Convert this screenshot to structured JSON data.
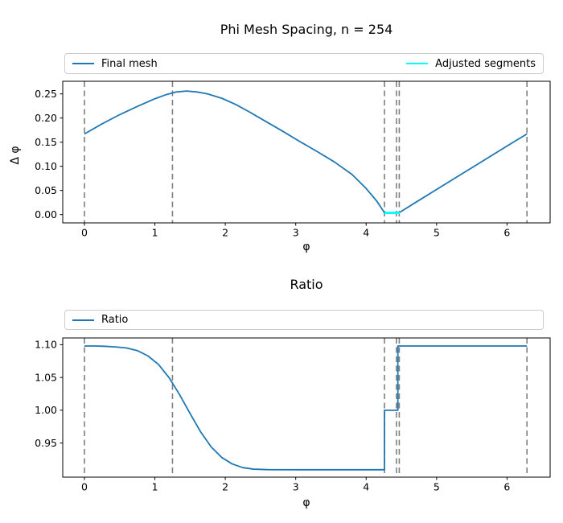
{
  "figure": {
    "background": "#ffffff",
    "accent_blue": "#1f77b4",
    "accent_cyan": "#00ffff",
    "dashed_gray": "#7f7f7f"
  },
  "chart_data": [
    {
      "type": "line",
      "title": "Phi Mesh Spacing, n = 254",
      "xlabel": "φ",
      "ylabel": "Δ φ",
      "xlim": [
        -0.308,
        6.612
      ],
      "ylim": [
        -0.0172,
        0.2762
      ],
      "xticks": [
        0,
        1,
        2,
        3,
        4,
        5,
        6
      ],
      "xtick_labels": [
        "0",
        "1",
        "2",
        "3",
        "4",
        "5",
        "6"
      ],
      "yticks": [
        0.0,
        0.05,
        0.1,
        0.15,
        0.2,
        0.25
      ],
      "ytick_labels": [
        "0.00",
        "0.05",
        "0.10",
        "0.15",
        "0.20",
        "0.25"
      ],
      "grid": false,
      "legend_position": "above-axes-expanded",
      "dashed_vlines_x": [
        0,
        1.25,
        4.26,
        4.43,
        4.47,
        6.283
      ],
      "dashed_line_color": "#7f7f7f",
      "series": [
        {
          "name": "Final mesh",
          "color": "#1f77b4",
          "width": 1.8,
          "points": [
            [
              0,
              0.167
            ],
            [
              0.25,
              0.188
            ],
            [
              0.5,
              0.207
            ],
            [
              0.75,
              0.224
            ],
            [
              1.0,
              0.24
            ],
            [
              1.15,
              0.248
            ],
            [
              1.3,
              0.254
            ],
            [
              1.45,
              0.256
            ],
            [
              1.6,
              0.254
            ],
            [
              1.75,
              0.25
            ],
            [
              1.95,
              0.241
            ],
            [
              2.15,
              0.228
            ],
            [
              2.35,
              0.212
            ],
            [
              2.55,
              0.195
            ],
            [
              2.8,
              0.174
            ],
            [
              3.05,
              0.152
            ],
            [
              3.3,
              0.131
            ],
            [
              3.55,
              0.109
            ],
            [
              3.8,
              0.083
            ],
            [
              4.0,
              0.054
            ],
            [
              4.15,
              0.028
            ],
            [
              4.26,
              0.004
            ],
            [
              4.47,
              0.004
            ],
            [
              4.7,
              0.025
            ],
            [
              5.0,
              0.052
            ],
            [
              5.3,
              0.079
            ],
            [
              5.6,
              0.106
            ],
            [
              5.9,
              0.133
            ],
            [
              6.1,
              0.151
            ],
            [
              6.283,
              0.167
            ]
          ]
        },
        {
          "name": "Adjusted segments",
          "color": "#00ffff",
          "width": 2.8,
          "points": [
            [
              4.26,
              0.0035
            ],
            [
              4.48,
              0.0035
            ]
          ]
        }
      ]
    },
    {
      "type": "line",
      "title": "Ratio",
      "xlabel": "φ",
      "ylabel": "",
      "xlim": [
        -0.308,
        6.612
      ],
      "ylim": [
        0.898,
        1.1103
      ],
      "xticks": [
        0,
        1,
        2,
        3,
        4,
        5,
        6
      ],
      "xtick_labels": [
        "0",
        "1",
        "2",
        "3",
        "4",
        "5",
        "6"
      ],
      "yticks": [
        0.95,
        1.0,
        1.05,
        1.1
      ],
      "ytick_labels": [
        "0.95",
        "1.00",
        "1.05",
        "1.10"
      ],
      "grid": false,
      "legend_position": "above-axes-expanded",
      "dashed_vlines_x": [
        0,
        1.25,
        4.26,
        4.43,
        4.47,
        6.283
      ],
      "dashed_line_color": "#7f7f7f",
      "series": [
        {
          "name": "Ratio",
          "color": "#1f77b4",
          "width": 1.8,
          "points": [
            [
              0,
              1.098
            ],
            [
              0.15,
              1.098
            ],
            [
              0.3,
              1.0975
            ],
            [
              0.45,
              1.0965
            ],
            [
              0.6,
              1.095
            ],
            [
              0.75,
              1.091
            ],
            [
              0.9,
              1.083
            ],
            [
              1.05,
              1.07
            ],
            [
              1.2,
              1.05
            ],
            [
              1.35,
              1.024
            ],
            [
              1.5,
              0.995
            ],
            [
              1.65,
              0.967
            ],
            [
              1.8,
              0.944
            ],
            [
              1.95,
              0.928
            ],
            [
              2.1,
              0.918
            ],
            [
              2.25,
              0.9125
            ],
            [
              2.4,
              0.9102
            ],
            [
              2.6,
              0.9094
            ],
            [
              3.0,
              0.9093
            ],
            [
              3.5,
              0.9093
            ],
            [
              4.0,
              0.9093
            ],
            [
              4.26,
              0.9093
            ],
            [
              4.26,
              1.0
            ],
            [
              4.45,
              1.0
            ],
            [
              4.45,
              1.098
            ],
            [
              4.7,
              1.098
            ],
            [
              5.5,
              1.098
            ],
            [
              6.283,
              1.098
            ]
          ]
        }
      ]
    }
  ]
}
